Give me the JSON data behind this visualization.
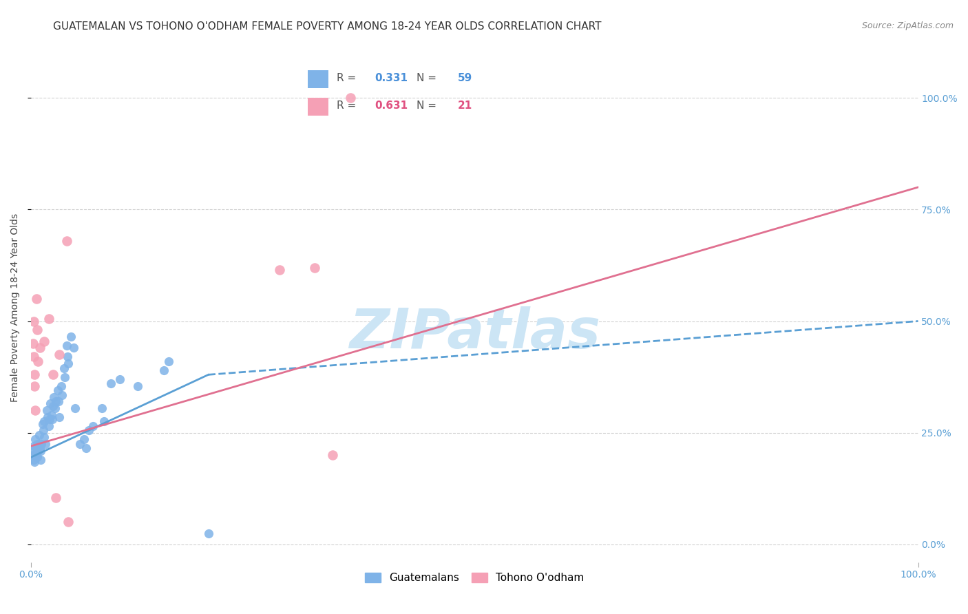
{
  "title": "GUATEMALAN VS TOHONO O'ODHAM FEMALE POVERTY AMONG 18-24 YEAR OLDS CORRELATION CHART",
  "source": "Source: ZipAtlas.com",
  "ylabel": "Female Poverty Among 18-24 Year Olds",
  "xlim": [
    0,
    1.0
  ],
  "ylim": [
    -0.04,
    1.1
  ],
  "guatemalan_color": "#7fb3e8",
  "guatemalan_edge": "#5a9fd4",
  "tohono_color": "#f5a0b5",
  "tohono_edge": "#e07090",
  "guatemalan_R": "0.331",
  "guatemalan_N": "59",
  "tohono_R": "0.631",
  "tohono_N": "21",
  "guatemalan_scatter": [
    [
      0.002,
      0.2
    ],
    [
      0.002,
      0.21
    ],
    [
      0.003,
      0.19
    ],
    [
      0.003,
      0.22
    ],
    [
      0.004,
      0.185
    ],
    [
      0.005,
      0.235
    ],
    [
      0.006,
      0.215
    ],
    [
      0.006,
      0.2
    ],
    [
      0.007,
      0.195
    ],
    [
      0.007,
      0.225
    ],
    [
      0.008,
      0.21
    ],
    [
      0.009,
      0.245
    ],
    [
      0.01,
      0.225
    ],
    [
      0.01,
      0.215
    ],
    [
      0.011,
      0.19
    ],
    [
      0.011,
      0.21
    ],
    [
      0.012,
      0.225
    ],
    [
      0.013,
      0.27
    ],
    [
      0.014,
      0.255
    ],
    [
      0.015,
      0.24
    ],
    [
      0.015,
      0.275
    ],
    [
      0.016,
      0.225
    ],
    [
      0.018,
      0.3
    ],
    [
      0.019,
      0.285
    ],
    [
      0.02,
      0.265
    ],
    [
      0.021,
      0.28
    ],
    [
      0.022,
      0.315
    ],
    [
      0.023,
      0.29
    ],
    [
      0.024,
      0.28
    ],
    [
      0.025,
      0.31
    ],
    [
      0.026,
      0.33
    ],
    [
      0.027,
      0.305
    ],
    [
      0.028,
      0.32
    ],
    [
      0.03,
      0.345
    ],
    [
      0.031,
      0.32
    ],
    [
      0.032,
      0.285
    ],
    [
      0.034,
      0.355
    ],
    [
      0.035,
      0.335
    ],
    [
      0.037,
      0.395
    ],
    [
      0.038,
      0.375
    ],
    [
      0.04,
      0.445
    ],
    [
      0.041,
      0.42
    ],
    [
      0.042,
      0.405
    ],
    [
      0.045,
      0.465
    ],
    [
      0.048,
      0.44
    ],
    [
      0.05,
      0.305
    ],
    [
      0.055,
      0.225
    ],
    [
      0.06,
      0.235
    ],
    [
      0.062,
      0.215
    ],
    [
      0.065,
      0.255
    ],
    [
      0.07,
      0.265
    ],
    [
      0.08,
      0.305
    ],
    [
      0.082,
      0.275
    ],
    [
      0.09,
      0.36
    ],
    [
      0.1,
      0.37
    ],
    [
      0.12,
      0.355
    ],
    [
      0.15,
      0.39
    ],
    [
      0.155,
      0.41
    ],
    [
      0.2,
      0.025
    ]
  ],
  "tohono_scatter": [
    [
      0.002,
      0.45
    ],
    [
      0.003,
      0.5
    ],
    [
      0.003,
      0.42
    ],
    [
      0.004,
      0.38
    ],
    [
      0.004,
      0.355
    ],
    [
      0.005,
      0.3
    ],
    [
      0.006,
      0.55
    ],
    [
      0.007,
      0.48
    ],
    [
      0.008,
      0.41
    ],
    [
      0.01,
      0.44
    ],
    [
      0.015,
      0.455
    ],
    [
      0.02,
      0.505
    ],
    [
      0.025,
      0.38
    ],
    [
      0.028,
      0.105
    ],
    [
      0.032,
      0.425
    ],
    [
      0.04,
      0.68
    ],
    [
      0.042,
      0.05
    ],
    [
      0.28,
      0.615
    ],
    [
      0.32,
      0.62
    ],
    [
      0.36,
      1.0
    ],
    [
      0.34,
      0.2
    ]
  ],
  "guatemalan_line_solid": [
    [
      0.0,
      0.195
    ],
    [
      0.2,
      0.38
    ]
  ],
  "guatemalan_line_dashed": [
    [
      0.2,
      0.38
    ],
    [
      1.0,
      0.5
    ]
  ],
  "tohono_line": [
    [
      0.0,
      0.22
    ],
    [
      1.0,
      0.8
    ]
  ],
  "xticks": [
    0.0,
    1.0
  ],
  "yticks_right": [
    0.0,
    0.25,
    0.5,
    0.75,
    1.0
  ],
  "background_color": "#ffffff",
  "grid_color": "#cccccc",
  "watermark_text": "ZIPatlas",
  "watermark_color": "#cce5f5",
  "line_blue": "#5a9fd4",
  "line_pink": "#e07090",
  "legend_R_color_blue": "#4a90d9",
  "legend_R_color_pink": "#e05080",
  "tick_color": "#5a9fd4",
  "title_fontsize": 11,
  "axis_label_fontsize": 10,
  "tick_fontsize": 10,
  "source_fontsize": 9
}
